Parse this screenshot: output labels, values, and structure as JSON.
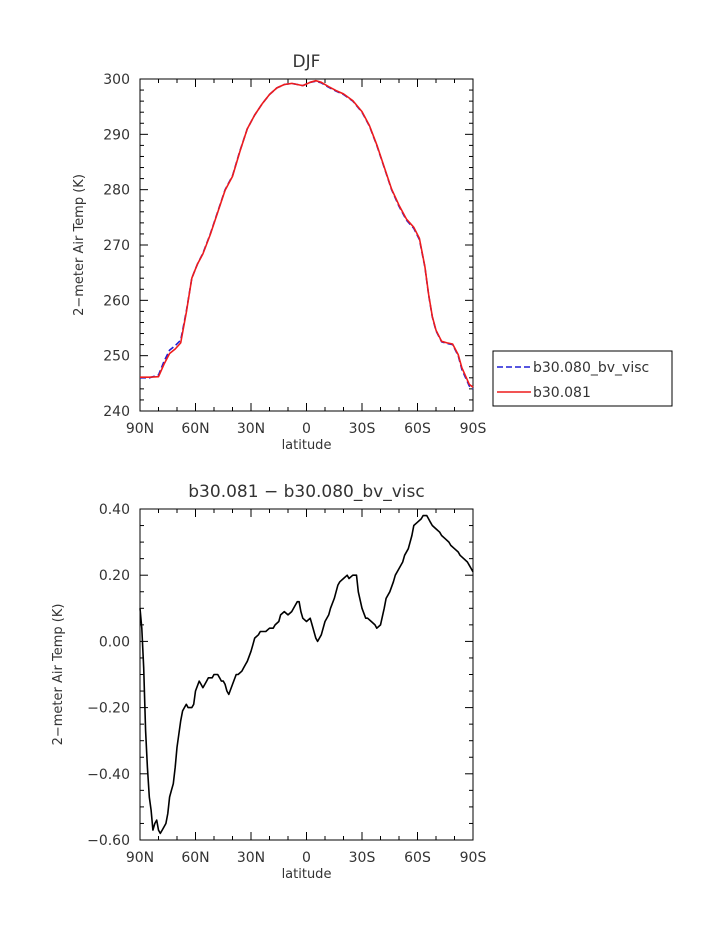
{
  "chart_data": [
    {
      "type": "line",
      "title": "DJF",
      "xlabel": "latitude",
      "ylabel": "2-meter Air Temp (K)",
      "xlim": [
        90,
        -90
      ],
      "ylim": [
        240,
        300
      ],
      "xticks": [
        90,
        60,
        30,
        0,
        -30,
        -60,
        -90
      ],
      "xtick_labels": [
        "90N",
        "60N",
        "30N",
        "0",
        "30S",
        "60S",
        "90S"
      ],
      "yticks": [
        240,
        250,
        260,
        270,
        280,
        290,
        300
      ],
      "ytick_labels": [
        "240",
        "250",
        "260",
        "270",
        "280",
        "290",
        "300"
      ],
      "legend_position": "right",
      "series": [
        {
          "name": "b30.080_bv_visc",
          "color": "#1f1fd6",
          "dashed": true,
          "x": [
            90,
            85,
            80,
            77,
            74,
            71,
            68,
            65,
            62,
            59,
            56,
            52,
            48,
            44,
            40,
            36,
            32,
            28,
            24,
            20,
            16,
            12,
            8,
            5,
            2,
            0,
            -2,
            -5,
            -8,
            -12,
            -16,
            -20,
            -25,
            -30,
            -34,
            -38,
            -42,
            -46,
            -50,
            -54,
            -58,
            -61,
            -64,
            -66,
            -68,
            -70,
            -73,
            -76,
            -79,
            -82,
            -84,
            -86,
            -88,
            -90
          ],
          "y": [
            246.0,
            246.0,
            246.5,
            249.0,
            251.0,
            251.8,
            252.8,
            258.0,
            264.0,
            266.5,
            268.5,
            272.0,
            276.0,
            280.0,
            282.5,
            287.0,
            291.0,
            293.5,
            295.5,
            297.2,
            298.4,
            299.0,
            299.2,
            299.0,
            298.8,
            299.1,
            299.4,
            299.6,
            299.3,
            298.5,
            297.8,
            297.2,
            296.0,
            294.0,
            291.5,
            288.0,
            284.0,
            280.0,
            277.0,
            274.5,
            273.0,
            271.0,
            266.0,
            261.0,
            257.0,
            254.5,
            252.5,
            252.2,
            252.0,
            250.0,
            247.5,
            246.0,
            244.5,
            244.0
          ]
        },
        {
          "name": "b30.081",
          "color": "#ee1c1c",
          "dashed": false,
          "x": [
            90,
            85,
            80,
            77,
            74,
            71,
            68,
            65,
            62,
            59,
            56,
            52,
            48,
            44,
            40,
            36,
            32,
            28,
            24,
            20,
            16,
            12,
            8,
            5,
            2,
            0,
            -2,
            -5,
            -8,
            -12,
            -16,
            -20,
            -25,
            -30,
            -34,
            -38,
            -42,
            -46,
            -50,
            -54,
            -58,
            -61,
            -64,
            -66,
            -68,
            -70,
            -73,
            -76,
            -79,
            -82,
            -84,
            -86,
            -88,
            -90
          ],
          "y": [
            246.1,
            246.1,
            246.2,
            248.5,
            250.4,
            251.2,
            252.3,
            257.8,
            264.0,
            266.5,
            268.4,
            271.9,
            275.9,
            279.9,
            282.4,
            286.9,
            291.0,
            293.5,
            295.5,
            297.2,
            298.4,
            299.0,
            299.2,
            299.0,
            298.8,
            299.1,
            299.4,
            299.7,
            299.4,
            298.6,
            297.9,
            297.3,
            296.1,
            294.1,
            291.6,
            288.1,
            284.1,
            280.1,
            277.2,
            274.7,
            273.2,
            271.2,
            266.1,
            261.1,
            257.1,
            254.6,
            252.6,
            252.3,
            252.1,
            250.2,
            247.8,
            246.3,
            244.8,
            244.3
          ]
        }
      ]
    },
    {
      "type": "line",
      "title": "b30.081 - b30.080_bv_visc",
      "xlabel": "latitude",
      "ylabel": "2-meter Air Temp (K)",
      "xlim": [
        90,
        -90
      ],
      "ylim": [
        -0.6,
        0.4
      ],
      "xticks": [
        90,
        60,
        30,
        0,
        -30,
        -60,
        -90
      ],
      "xtick_labels": [
        "90N",
        "60N",
        "30N",
        "0",
        "30S",
        "60S",
        "90S"
      ],
      "yticks": [
        -0.6,
        -0.4,
        -0.2,
        0.0,
        0.2,
        0.4
      ],
      "ytick_labels": [
        "-0.60",
        "-0.40",
        "-0.20",
        "0.00",
        "0.20",
        "0.40"
      ],
      "series": [
        {
          "color": "#000000",
          "dashed": false,
          "x": [
            90,
            89,
            88,
            87,
            86,
            85,
            84,
            83,
            82,
            81,
            80,
            79,
            78,
            76,
            75,
            74,
            73,
            72,
            71,
            70,
            68,
            67,
            66,
            65,
            64,
            63,
            62,
            61,
            60,
            58,
            57,
            56,
            55,
            54,
            53,
            52,
            51,
            50,
            49,
            48,
            47,
            46,
            45,
            44,
            43,
            42,
            40,
            38,
            37,
            35,
            34,
            33,
            32,
            30,
            29,
            28,
            26,
            25,
            23,
            22,
            20,
            18,
            17,
            15,
            14,
            12,
            10,
            8,
            6,
            5,
            4,
            3,
            2,
            0,
            -2,
            -3,
            -5,
            -6,
            -8,
            -10,
            -12,
            -13,
            -15,
            -17,
            -18,
            -20,
            -22,
            -23,
            -25,
            -27,
            -28,
            -30,
            -32,
            -33,
            -35,
            -37,
            -38,
            -40,
            -42,
            -43,
            -45,
            -47,
            -48,
            -50,
            -52,
            -53,
            -55,
            -57,
            -58,
            -60,
            -62,
            -63,
            -65,
            -66,
            -67,
            -68,
            -70,
            -72,
            -73,
            -75,
            -77,
            -78,
            -80,
            -82,
            -83,
            -85,
            -87,
            -88,
            -89,
            -90
          ],
          "y": [
            0.1,
            0.04,
            -0.08,
            -0.27,
            -0.38,
            -0.47,
            -0.51,
            -0.57,
            -0.55,
            -0.54,
            -0.57,
            -0.58,
            -0.57,
            -0.55,
            -0.52,
            -0.47,
            -0.45,
            -0.43,
            -0.38,
            -0.32,
            -0.24,
            -0.21,
            -0.2,
            -0.19,
            -0.2,
            -0.2,
            -0.2,
            -0.19,
            -0.15,
            -0.12,
            -0.13,
            -0.14,
            -0.13,
            -0.12,
            -0.11,
            -0.11,
            -0.11,
            -0.1,
            -0.1,
            -0.1,
            -0.11,
            -0.12,
            -0.12,
            -0.13,
            -0.15,
            -0.16,
            -0.13,
            -0.1,
            -0.1,
            -0.09,
            -0.08,
            -0.07,
            -0.06,
            -0.03,
            -0.01,
            0.01,
            0.02,
            0.03,
            0.03,
            0.03,
            0.04,
            0.04,
            0.05,
            0.06,
            0.08,
            0.09,
            0.08,
            0.09,
            0.11,
            0.12,
            0.12,
            0.09,
            0.07,
            0.06,
            0.07,
            0.05,
            0.01,
            0.0,
            0.02,
            0.06,
            0.08,
            0.1,
            0.13,
            0.17,
            0.18,
            0.19,
            0.2,
            0.19,
            0.2,
            0.2,
            0.15,
            0.1,
            0.07,
            0.07,
            0.06,
            0.05,
            0.04,
            0.05,
            0.1,
            0.13,
            0.15,
            0.18,
            0.2,
            0.22,
            0.24,
            0.26,
            0.28,
            0.32,
            0.35,
            0.36,
            0.37,
            0.38,
            0.38,
            0.37,
            0.36,
            0.35,
            0.34,
            0.33,
            0.32,
            0.31,
            0.3,
            0.29,
            0.28,
            0.27,
            0.26,
            0.25,
            0.24,
            0.23,
            0.22,
            0.21
          ]
        }
      ]
    }
  ]
}
